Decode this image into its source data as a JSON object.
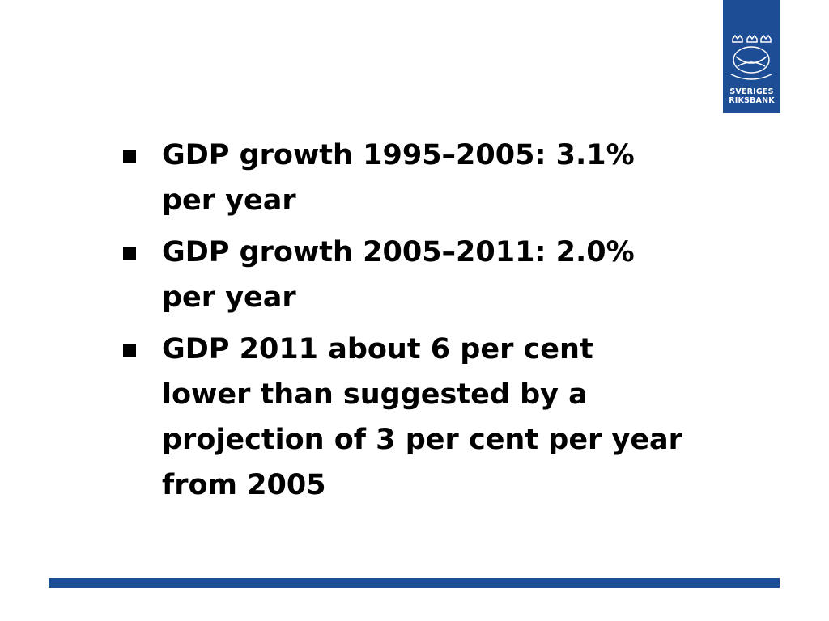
{
  "logo": {
    "lines": [
      "SVERIGES",
      "RIKSBANK"
    ]
  },
  "bullets": [
    {
      "lines": [
        "GDP growth 1995–2005: 3.1%",
        "per year"
      ]
    },
    {
      "lines": [
        "GDP growth 2005–2011: 2.0%",
        "per year"
      ]
    },
    {
      "lines": [
        "GDP 2011 about 6 per cent",
        "lower than suggested by a",
        "projection of 3 per cent per year",
        "from 2005"
      ]
    }
  ]
}
